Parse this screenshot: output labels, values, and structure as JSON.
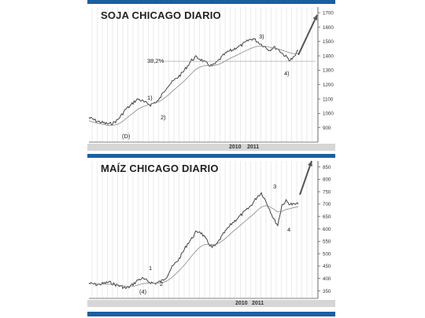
{
  "colors": {
    "bar": "#1b5fa0",
    "price": "#444444",
    "grid": "#dedede",
    "axis": "#555555"
  },
  "charts": {
    "soja": {
      "title": "SOJA CHICAGO DIARIO",
      "year_a": "2010",
      "year_b": "2011"
    },
    "maiz": {
      "title": "MAÍZ CHICAGO DIARIO",
      "year_a": "2010",
      "year_b": "2011"
    }
  },
  "chart_data": [
    {
      "type": "line",
      "title": "SOJA CHICAGO DIARIO",
      "ylim": [
        800,
        1750
      ],
      "y_ticks": [
        "900",
        "1000",
        "1100",
        "1200",
        "1300",
        "1400",
        "1500",
        "1600",
        "1700"
      ],
      "x_labels": [
        "2010",
        "2011"
      ],
      "retracement": {
        "label": "38,2%",
        "value": 1362
      },
      "series": [
        {
          "values": [
            970,
            958,
            945,
            938,
            930,
            925,
            935,
            955,
            990,
            1030,
            1050,
            1080,
            1100,
            1085,
            1070,
            1060,
            1075,
            1090,
            1140,
            1185,
            1210,
            1235,
            1260,
            1290,
            1330,
            1370,
            1390,
            1380,
            1360,
            1340,
            1330,
            1350,
            1380,
            1410,
            1430,
            1440,
            1460,
            1470,
            1490,
            1510,
            1520,
            1500,
            1480,
            1460,
            1440,
            1460,
            1450,
            1420,
            1395,
            1370,
            1390,
            1440
          ]
        },
        {
          "values": [
            948,
            940,
            932,
            926,
            920,
            916,
            918,
            924,
            940,
            962,
            986,
            1008,
            1030,
            1044,
            1055,
            1063,
            1071,
            1081,
            1098,
            1120,
            1145,
            1170,
            1195,
            1220,
            1248,
            1278,
            1305,
            1322,
            1330,
            1333,
            1332,
            1336,
            1345,
            1360,
            1376,
            1390,
            1404,
            1418,
            1432,
            1446,
            1458,
            1466,
            1468,
            1466,
            1460,
            1455,
            1448,
            1440,
            1430,
            1420,
            1414,
            1418
          ]
        }
      ],
      "annotations": [
        "(D)",
        "1)",
        "2)",
        "3)",
        "4)",
        "38,2%"
      ]
    },
    {
      "type": "line",
      "title": "MAÍZ CHICAGO DIARIO",
      "ylim": [
        320,
        880
      ],
      "y_ticks": [
        "350",
        "400",
        "450",
        "500",
        "550",
        "600",
        "650",
        "700",
        "750",
        "800",
        "850"
      ],
      "x_labels": [
        "2010",
        "2011"
      ],
      "series": [
        {
          "values": [
            380,
            378,
            375,
            378,
            382,
            385,
            378,
            372,
            368,
            360,
            368,
            380,
            395,
            400,
            392,
            385,
            380,
            385,
            392,
            410,
            440,
            460,
            480,
            510,
            540,
            560,
            585,
            590,
            570,
            545,
            525,
            535,
            560,
            585,
            605,
            625,
            640,
            655,
            670,
            685,
            705,
            730,
            745,
            715,
            680,
            640,
            615,
            695,
            712,
            700,
            698,
            700
          ]
        },
        {
          "values": [
            382,
            380,
            378,
            377,
            377,
            377,
            376,
            374,
            372,
            368,
            367,
            369,
            374,
            379,
            381,
            381,
            381,
            382,
            384,
            390,
            402,
            416,
            432,
            450,
            470,
            490,
            510,
            526,
            536,
            538,
            536,
            538,
            546,
            558,
            572,
            588,
            602,
            616,
            630,
            644,
            658,
            674,
            688,
            694,
            690,
            680,
            668,
            670,
            678,
            682,
            686,
            690
          ]
        }
      ],
      "annotations": [
        "(4)",
        "1",
        "2",
        "3",
        "4"
      ]
    }
  ]
}
